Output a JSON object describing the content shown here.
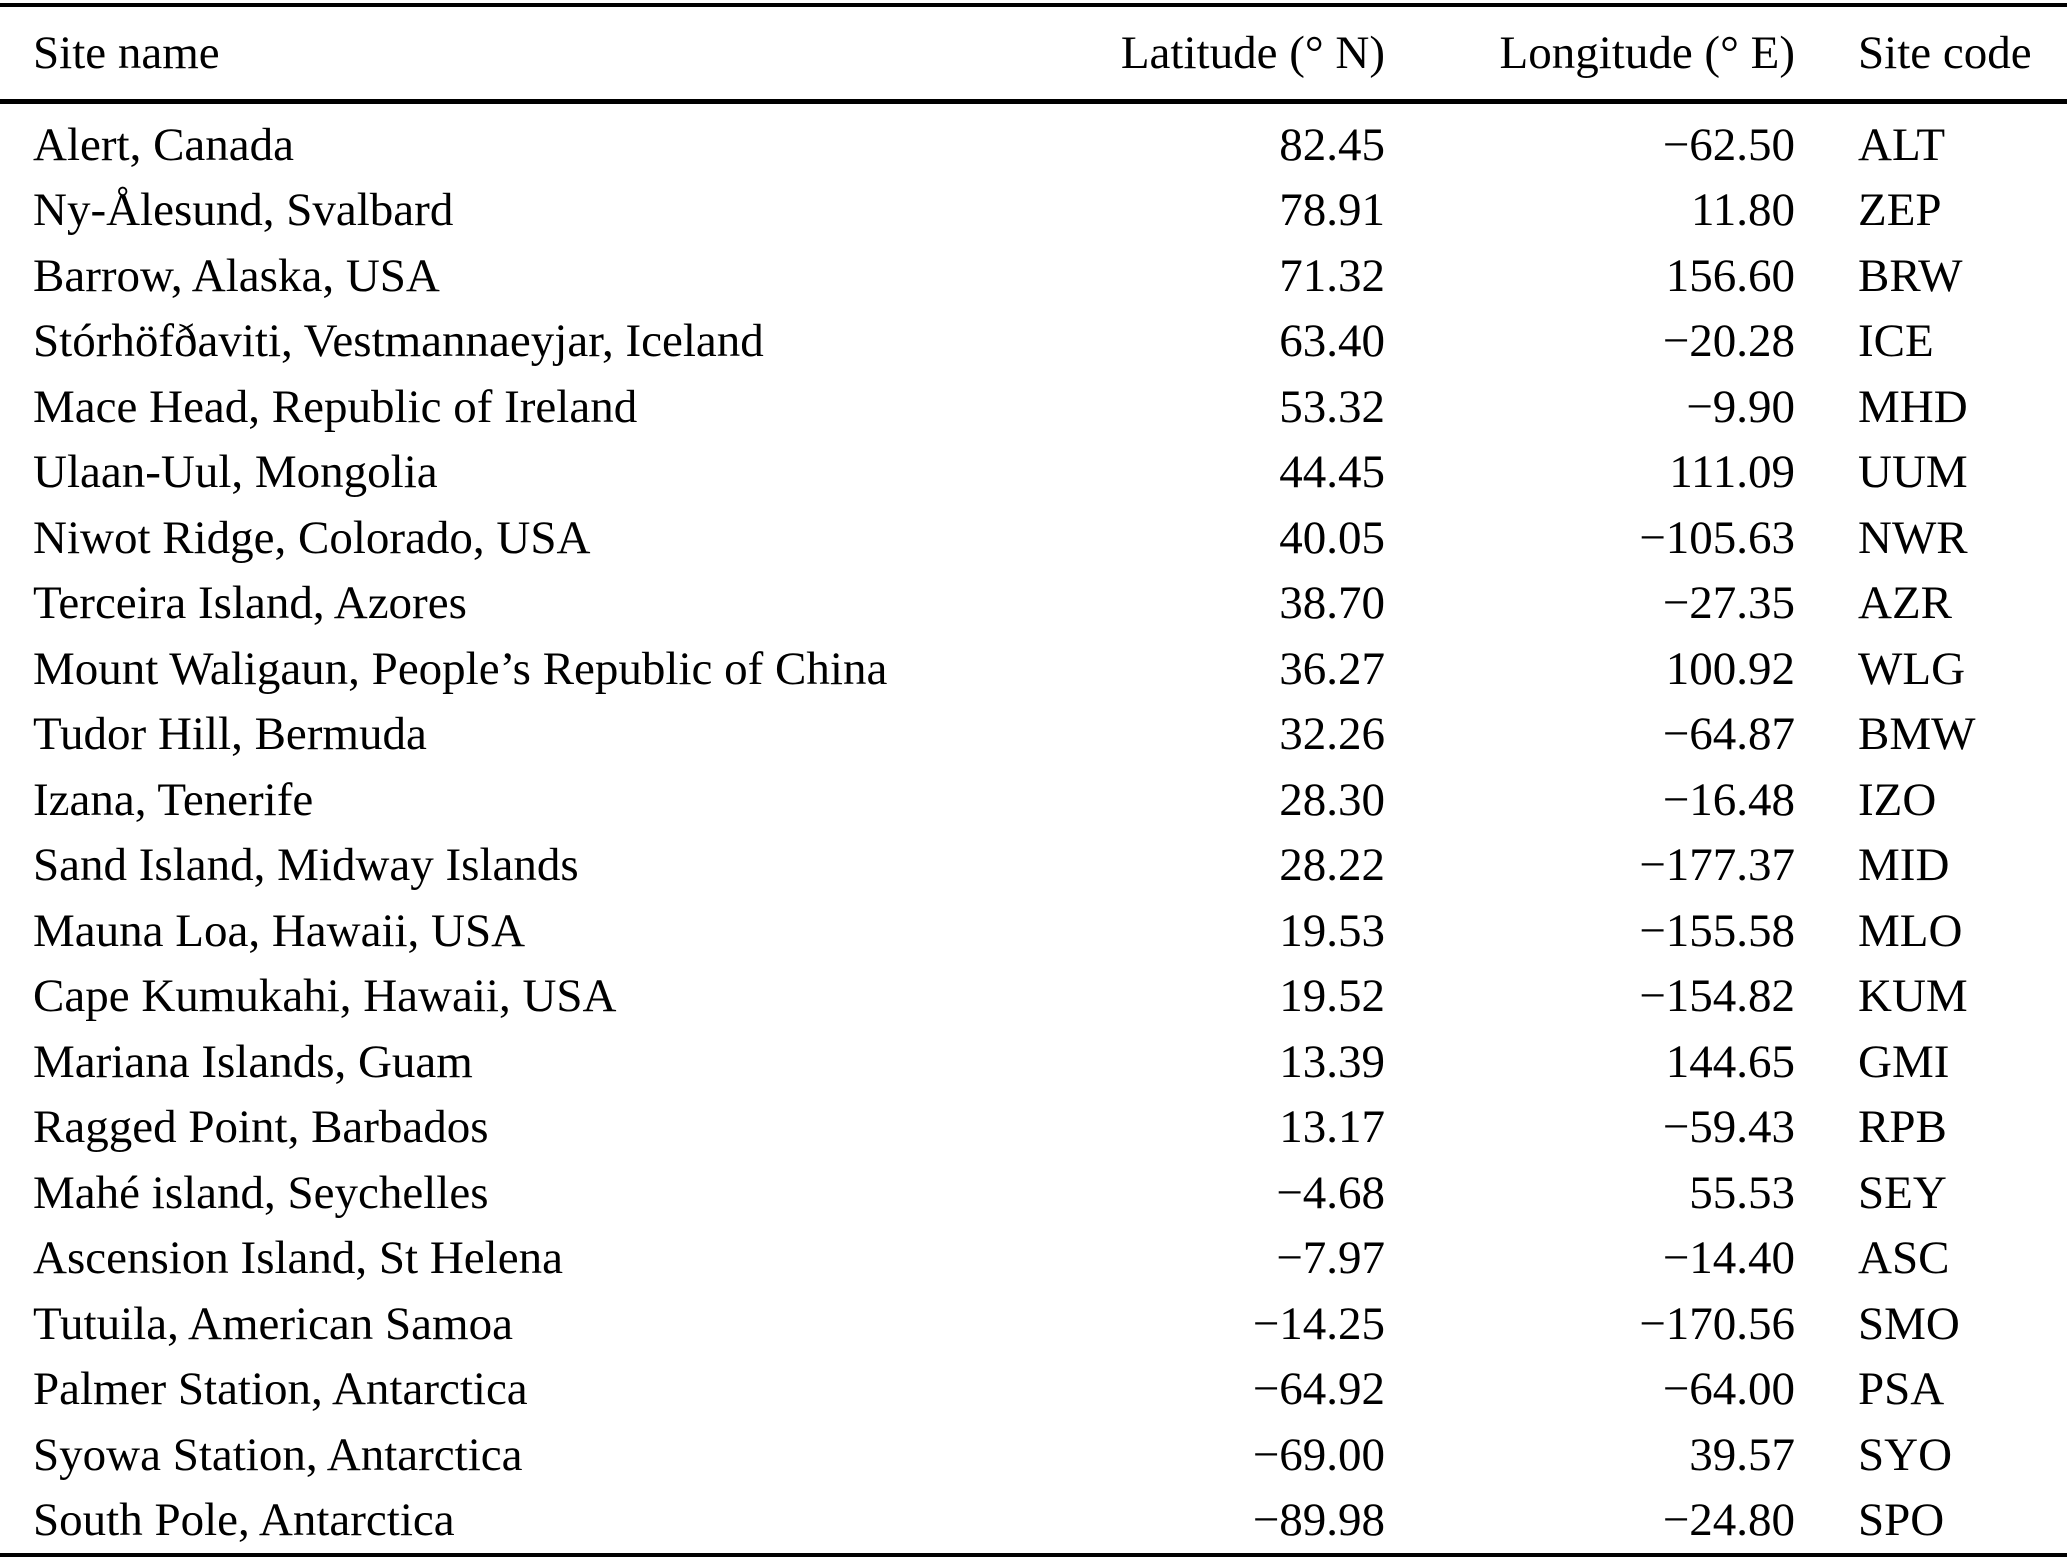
{
  "table": {
    "columns": [
      "Site name",
      "Latitude (° N)",
      "Longitude (° E)",
      "Site code"
    ],
    "rows": [
      {
        "site": "Alert, Canada",
        "lat": "82.45",
        "lon": "−62.50",
        "code": "ALT"
      },
      {
        "site": "Ny-Ålesund, Svalbard",
        "lat": "78.91",
        "lon": "11.80",
        "code": "ZEP"
      },
      {
        "site": "Barrow, Alaska, USA",
        "lat": "71.32",
        "lon": "156.60",
        "code": "BRW"
      },
      {
        "site": "Stórhöfðaviti, Vestmannaeyjar, Iceland",
        "lat": "63.40",
        "lon": "−20.28",
        "code": "ICE"
      },
      {
        "site": "Mace Head, Republic of Ireland",
        "lat": "53.32",
        "lon": "−9.90",
        "code": "MHD"
      },
      {
        "site": "Ulaan-Uul, Mongolia",
        "lat": "44.45",
        "lon": "111.09",
        "code": "UUM"
      },
      {
        "site": "Niwot Ridge, Colorado, USA",
        "lat": "40.05",
        "lon": "−105.63",
        "code": "NWR"
      },
      {
        "site": "Terceira Island, Azores",
        "lat": "38.70",
        "lon": "−27.35",
        "code": "AZR"
      },
      {
        "site": "Mount Waligaun, People’s Republic of China",
        "lat": "36.27",
        "lon": "100.92",
        "code": "WLG"
      },
      {
        "site": "Tudor Hill, Bermuda",
        "lat": "32.26",
        "lon": "−64.87",
        "code": "BMW"
      },
      {
        "site": "Izana, Tenerife",
        "lat": "28.30",
        "lon": "−16.48",
        "code": "IZO"
      },
      {
        "site": "Sand Island, Midway Islands",
        "lat": "28.22",
        "lon": "−177.37",
        "code": "MID"
      },
      {
        "site": "Mauna Loa, Hawaii, USA",
        "lat": "19.53",
        "lon": "−155.58",
        "code": "MLO"
      },
      {
        "site": "Cape Kumukahi, Hawaii, USA",
        "lat": "19.52",
        "lon": "−154.82",
        "code": "KUM"
      },
      {
        "site": "Mariana Islands, Guam",
        "lat": "13.39",
        "lon": "144.65",
        "code": "GMI"
      },
      {
        "site": "Ragged Point, Barbados",
        "lat": "13.17",
        "lon": "−59.43",
        "code": "RPB"
      },
      {
        "site": "Mahé island, Seychelles",
        "lat": "−4.68",
        "lon": "55.53",
        "code": "SEY"
      },
      {
        "site": "Ascension Island, St Helena",
        "lat": "−7.97",
        "lon": "−14.40",
        "code": "ASC"
      },
      {
        "site": "Tutuila, American Samoa",
        "lat": "−14.25",
        "lon": "−170.56",
        "code": "SMO"
      },
      {
        "site": "Palmer Station, Antarctica",
        "lat": "−64.92",
        "lon": "−64.00",
        "code": "PSA"
      },
      {
        "site": "Syowa Station, Antarctica",
        "lat": "−69.00",
        "lon": "39.57",
        "code": "SYO"
      },
      {
        "site": "South Pole, Antarctica",
        "lat": "−89.98",
        "lon": "−24.80",
        "code": "SPO"
      }
    ]
  },
  "colors": {
    "text": "#000000",
    "background": "#ffffff",
    "rule": "#000000"
  }
}
